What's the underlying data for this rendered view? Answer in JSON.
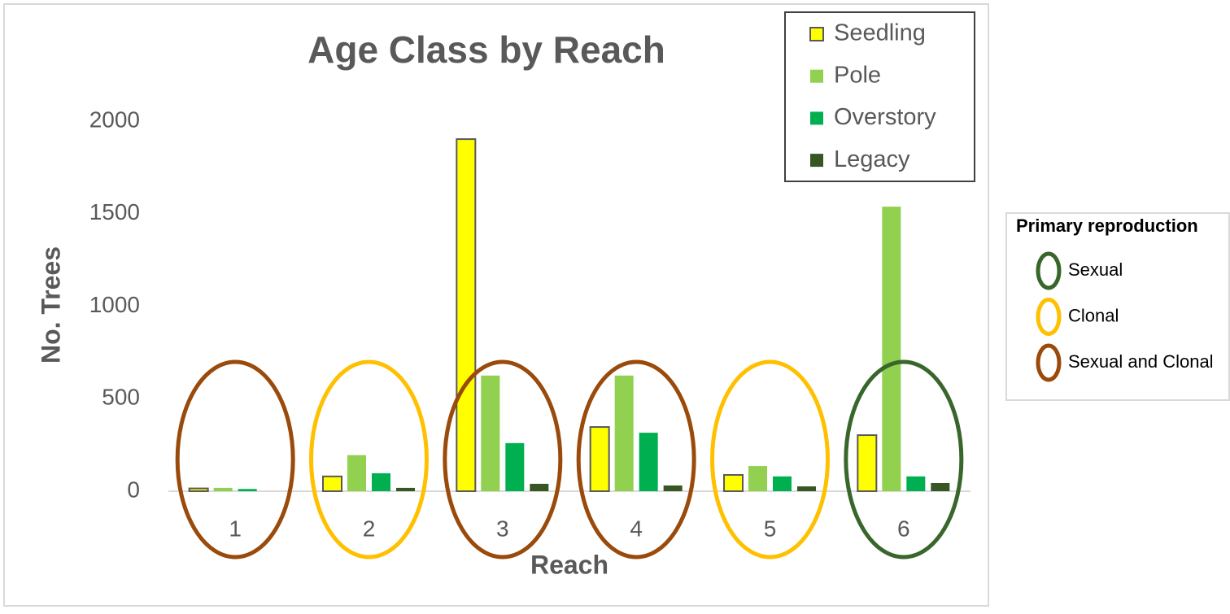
{
  "chart_data": {
    "type": "bar",
    "title": "Age Class by Reach",
    "x_label": "Reach",
    "y_label": "No. Trees",
    "categories": [
      "1",
      "2",
      "3",
      "4",
      "5",
      "6"
    ],
    "series": [
      {
        "name": "Seedling",
        "color": "#ffff00",
        "values": [
          15,
          80,
          1903,
          347,
          88,
          303
        ]
      },
      {
        "name": "Pole",
        "color": "#92d050",
        "values": [
          18,
          195,
          625,
          625,
          136,
          1538
        ]
      },
      {
        "name": "Overstory",
        "color": "#00b050",
        "values": [
          12,
          97,
          260,
          316,
          80,
          80
        ]
      },
      {
        "name": "Legacy",
        "color": "#375623",
        "values": [
          0,
          18,
          40,
          31,
          26,
          44
        ]
      }
    ],
    "ylim": [
      0,
      2000
    ],
    "yticks": [
      0,
      500,
      1000,
      1500,
      2000
    ],
    "grid": false,
    "legend": "top-right",
    "reproduction_legend": {
      "title": "Primary reproduction",
      "items": [
        {
          "name": "Sexual",
          "color": "#38662b",
          "categories": [
            "6"
          ]
        },
        {
          "name": "Clonal",
          "color": "#ffc000",
          "categories": [
            "2",
            "5"
          ]
        },
        {
          "name": "Sexual and Clonal",
          "color": "#9a4a0a",
          "categories": [
            "1",
            "3",
            "4"
          ]
        }
      ]
    }
  }
}
